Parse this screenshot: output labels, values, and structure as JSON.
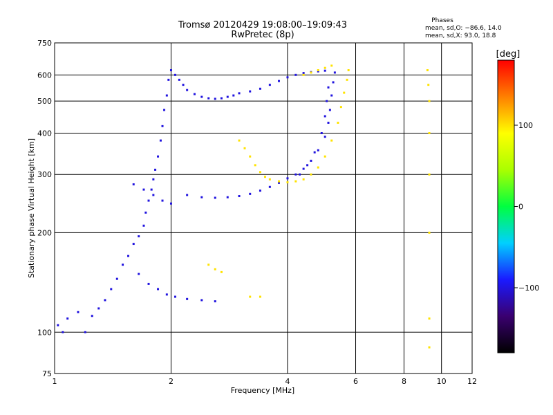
{
  "chart_data": {
    "type": "scatter",
    "title": "Tromsø 20120429 19:08:00–19:09:43",
    "subtitle": "RwPretec (8p)",
    "xlabel": "Frequency [MHz]",
    "ylabel": "Stationary phase Virtual Height [km]",
    "x_scale": "log",
    "y_scale": "log",
    "xlim": [
      1,
      12
    ],
    "ylim": [
      75,
      750
    ],
    "x_ticks": [
      "1",
      "2",
      "4",
      "6",
      "8",
      "10",
      "12"
    ],
    "x_tick_values": [
      1,
      2,
      4,
      6,
      8,
      10,
      12
    ],
    "y_ticks": [
      "75",
      "100",
      "200",
      "300",
      "400",
      "500",
      "600",
      "750"
    ],
    "y_tick_values": [
      75,
      100,
      200,
      300,
      400,
      500,
      600,
      750
    ],
    "grid": true,
    "phases": {
      "title": "Phases",
      "line1": "mean, sd,O: −86.6, 14.0",
      "line2": "mean, sd,X:  93.0, 18.8"
    },
    "colorbar": {
      "label": "[deg]",
      "range": [
        -180,
        180
      ],
      "ticks": [
        "100",
        "0",
        "−100"
      ],
      "tick_values": [
        100,
        0,
        -100
      ],
      "colors": [
        "#000000",
        "#3a0070",
        "#1a1aff",
        "#00d0ff",
        "#00ff40",
        "#aaff00",
        "#ffff00",
        "#ff8000",
        "#ff0000"
      ]
    },
    "series": [
      {
        "phase": -100,
        "points": [
          [
            1.02,
            105
          ],
          [
            1.05,
            100
          ],
          [
            1.08,
            110
          ],
          [
            1.15,
            115
          ],
          [
            1.2,
            100
          ],
          [
            1.25,
            112
          ],
          [
            1.3,
            118
          ],
          [
            1.35,
            125
          ],
          [
            1.4,
            135
          ],
          [
            1.45,
            145
          ],
          [
            1.5,
            160
          ],
          [
            1.55,
            170
          ],
          [
            1.6,
            185
          ],
          [
            1.65,
            195
          ],
          [
            1.7,
            210
          ],
          [
            1.72,
            230
          ],
          [
            1.75,
            250
          ],
          [
            1.78,
            270
          ],
          [
            1.8,
            290
          ],
          [
            1.82,
            310
          ],
          [
            1.85,
            340
          ],
          [
            1.88,
            380
          ],
          [
            1.9,
            420
          ],
          [
            1.92,
            470
          ],
          [
            1.95,
            520
          ],
          [
            1.97,
            580
          ],
          [
            2.0,
            620
          ],
          [
            2.05,
            600
          ],
          [
            2.1,
            580
          ],
          [
            2.15,
            560
          ],
          [
            2.2,
            540
          ],
          [
            2.3,
            525
          ],
          [
            2.4,
            515
          ],
          [
            2.5,
            510
          ],
          [
            2.6,
            508
          ],
          [
            2.7,
            510
          ],
          [
            2.8,
            515
          ],
          [
            2.9,
            520
          ],
          [
            3.0,
            528
          ],
          [
            3.2,
            535
          ],
          [
            3.4,
            545
          ],
          [
            3.6,
            560
          ],
          [
            3.8,
            575
          ],
          [
            4.0,
            590
          ],
          [
            4.2,
            600
          ],
          [
            4.4,
            608
          ],
          [
            4.6,
            612
          ],
          [
            4.8,
            615
          ],
          [
            5.0,
            618
          ],
          [
            2.2,
            260
          ],
          [
            2.4,
            256
          ],
          [
            2.6,
            255
          ],
          [
            2.8,
            256
          ],
          [
            3.0,
            258
          ],
          [
            3.2,
            262
          ],
          [
            3.4,
            268
          ],
          [
            3.6,
            275
          ],
          [
            3.8,
            283
          ],
          [
            4.0,
            292
          ],
          [
            4.2,
            300
          ],
          [
            4.4,
            312
          ],
          [
            4.6,
            330
          ],
          [
            4.8,
            355
          ],
          [
            5.0,
            390
          ],
          [
            5.1,
            430
          ],
          [
            5.15,
            470
          ],
          [
            5.2,
            520
          ],
          [
            5.25,
            570
          ],
          [
            5.3,
            610
          ],
          [
            4.3,
            300
          ],
          [
            4.5,
            320
          ],
          [
            4.7,
            350
          ],
          [
            4.9,
            400
          ],
          [
            5.0,
            450
          ],
          [
            5.05,
            500
          ],
          [
            5.1,
            550
          ],
          [
            1.6,
            280
          ],
          [
            1.7,
            270
          ],
          [
            1.8,
            260
          ],
          [
            1.9,
            250
          ],
          [
            2.0,
            245
          ],
          [
            1.65,
            150
          ],
          [
            1.75,
            140
          ],
          [
            1.85,
            135
          ],
          [
            1.95,
            130
          ],
          [
            2.05,
            128
          ],
          [
            2.2,
            126
          ],
          [
            2.4,
            125
          ],
          [
            2.6,
            124
          ]
        ]
      },
      {
        "phase": 100,
        "points": [
          [
            3.0,
            380
          ],
          [
            3.1,
            360
          ],
          [
            3.2,
            340
          ],
          [
            3.3,
            320
          ],
          [
            3.4,
            305
          ],
          [
            3.5,
            295
          ],
          [
            3.6,
            290
          ],
          [
            3.8,
            286
          ],
          [
            4.0,
            284
          ],
          [
            4.2,
            286
          ],
          [
            4.4,
            290
          ],
          [
            4.6,
            300
          ],
          [
            4.8,
            315
          ],
          [
            5.0,
            340
          ],
          [
            5.2,
            380
          ],
          [
            5.4,
            430
          ],
          [
            5.5,
            480
          ],
          [
            5.6,
            530
          ],
          [
            5.7,
            580
          ],
          [
            5.75,
            620
          ],
          [
            4.4,
            600
          ],
          [
            4.6,
            610
          ],
          [
            4.8,
            620
          ],
          [
            5.0,
            630
          ],
          [
            5.2,
            640
          ],
          [
            2.5,
            160
          ],
          [
            2.6,
            155
          ],
          [
            2.7,
            152
          ],
          [
            3.2,
            128
          ],
          [
            3.4,
            128
          ],
          [
            9.2,
            620
          ],
          [
            9.25,
            560
          ],
          [
            9.3,
            500
          ],
          [
            9.3,
            400
          ],
          [
            9.3,
            300
          ],
          [
            9.3,
            200
          ],
          [
            9.3,
            110
          ],
          [
            9.3,
            90
          ]
        ]
      }
    ]
  }
}
